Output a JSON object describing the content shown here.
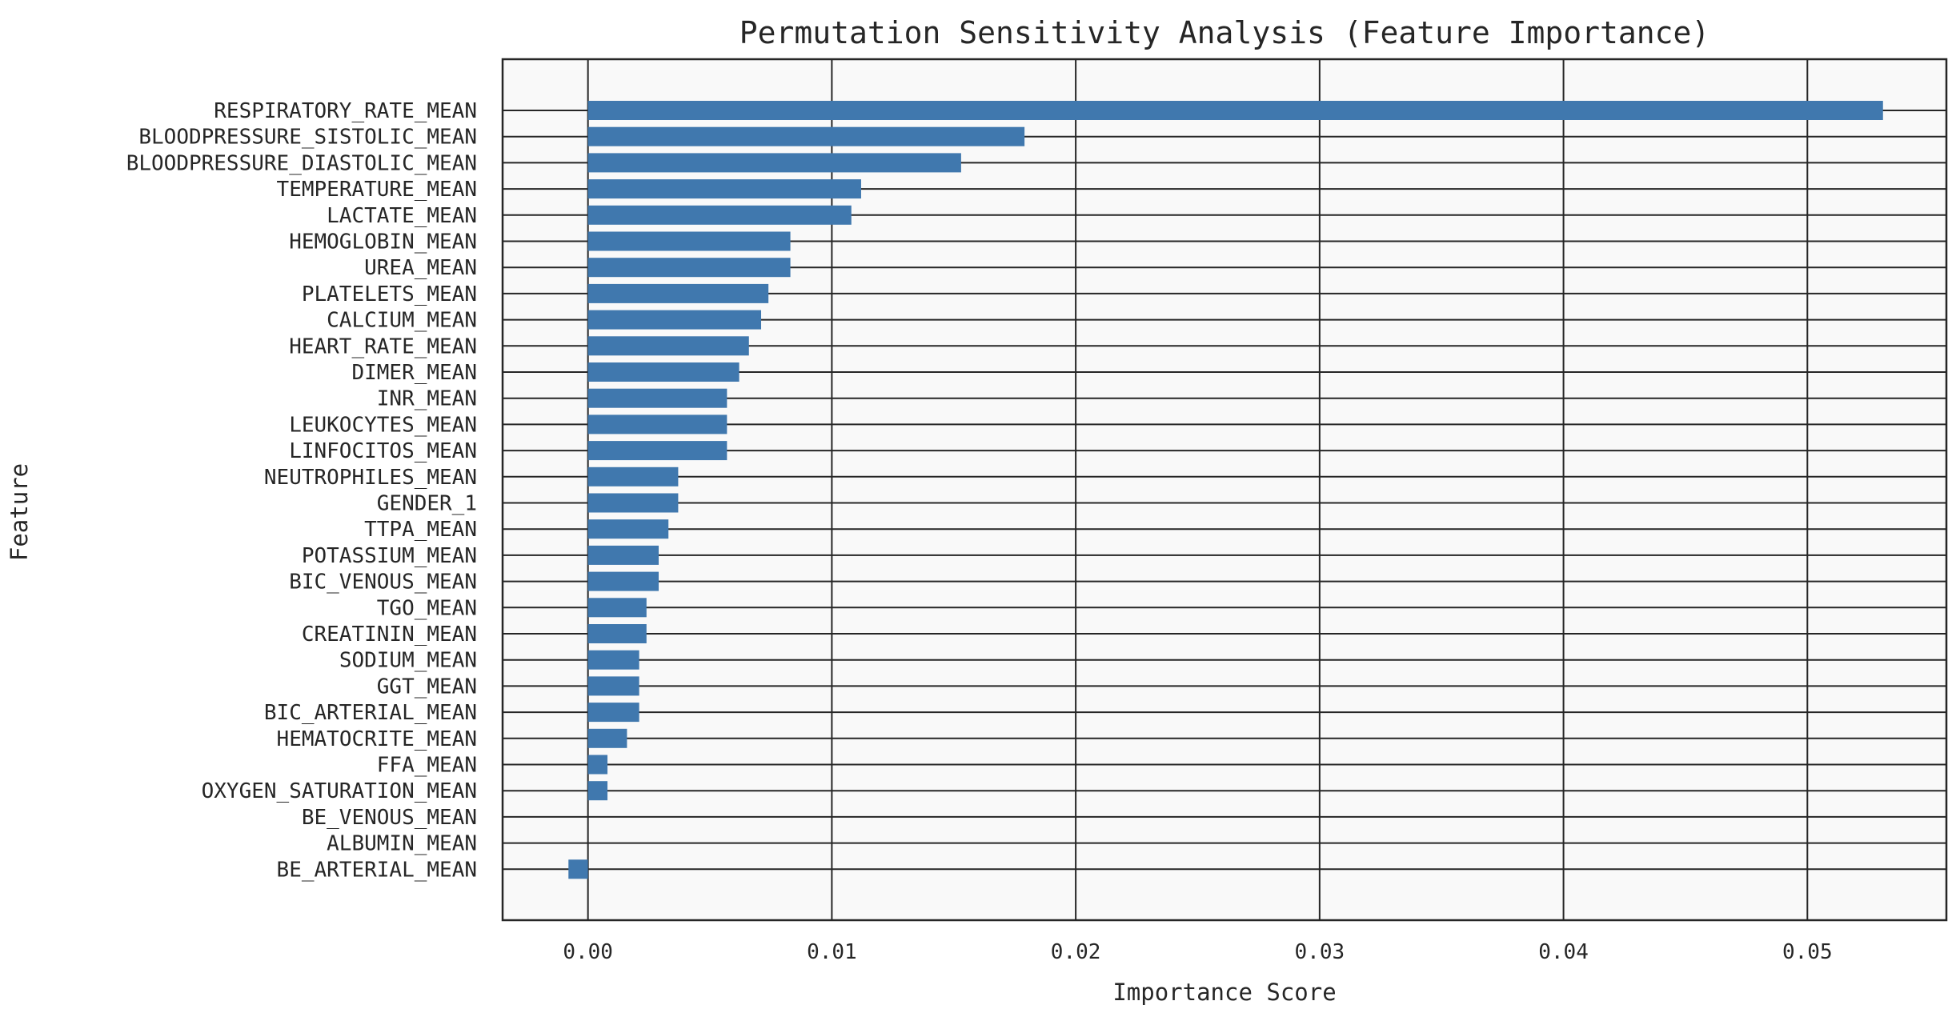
{
  "chart_data": {
    "type": "bar",
    "orientation": "horizontal",
    "title": "Permutation Sensitivity Analysis (Feature Importance)",
    "xlabel": "Importance Score",
    "ylabel": "Feature",
    "xlim": [
      -0.0035,
      0.0557
    ],
    "xticks": [
      0.0,
      0.01,
      0.02,
      0.03,
      0.04,
      0.05
    ],
    "xtick_labels": [
      "0.00",
      "0.01",
      "0.02",
      "0.03",
      "0.04",
      "0.05"
    ],
    "grid": true,
    "bar_color": "#4078ae",
    "background_color": "#f9f9f9",
    "categories": [
      "RESPIRATORY_RATE_MEAN",
      "BLOODPRESSURE_SISTOLIC_MEAN",
      "BLOODPRESSURE_DIASTOLIC_MEAN",
      "TEMPERATURE_MEAN",
      "LACTATE_MEAN",
      "HEMOGLOBIN_MEAN",
      "UREA_MEAN",
      "PLATELETS_MEAN",
      "CALCIUM_MEAN",
      "HEART_RATE_MEAN",
      "DIMER_MEAN",
      "INR_MEAN",
      "LEUKOCYTES_MEAN",
      "LINFOCITOS_MEAN",
      "NEUTROPHILES_MEAN",
      "GENDER_1",
      "TTPA_MEAN",
      "POTASSIUM_MEAN",
      "BIC_VENOUS_MEAN",
      "TGO_MEAN",
      "CREATININ_MEAN",
      "SODIUM_MEAN",
      "GGT_MEAN",
      "BIC_ARTERIAL_MEAN",
      "HEMATOCRITE_MEAN",
      "FFA_MEAN",
      "OXYGEN_SATURATION_MEAN",
      "BE_VENOUS_MEAN",
      "ALBUMIN_MEAN",
      "BE_ARTERIAL_MEAN"
    ],
    "values": [
      0.0531,
      0.0179,
      0.0153,
      0.0112,
      0.0108,
      0.0083,
      0.0083,
      0.0074,
      0.0071,
      0.0066,
      0.0062,
      0.0057,
      0.0057,
      0.0057,
      0.0037,
      0.0037,
      0.0033,
      0.0029,
      0.0029,
      0.0024,
      0.0024,
      0.0021,
      0.0021,
      0.0021,
      0.0016,
      0.0008,
      0.0008,
      0.0,
      0.0,
      -0.0008
    ]
  }
}
